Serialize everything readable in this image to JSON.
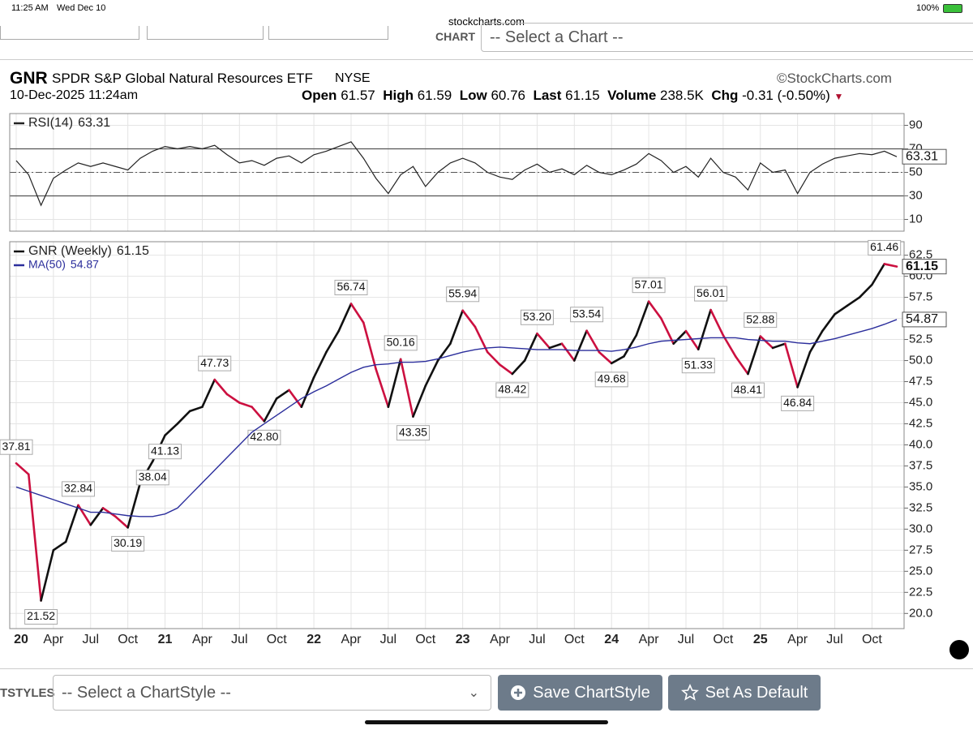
{
  "status_bar": {
    "time": "11:25 AM",
    "date": "Wed Dec 10",
    "url": "stockcharts.com",
    "battery": "100%"
  },
  "toolbar": {
    "chart_label": "CHART",
    "chart_select": "-- Select a Chart --"
  },
  "header": {
    "symbol": "GNR",
    "name": "SPDR S&P Global Natural Resources ETF",
    "exchange": "NYSE",
    "brand": "©StockCharts.com",
    "timestamp": "10-Dec-2025 11:24am",
    "open": {
      "label": "Open",
      "value": 61.57
    },
    "high": {
      "label": "High",
      "value": 61.59
    },
    "low": {
      "label": "Low",
      "value": 60.76
    },
    "last": {
      "label": "Last",
      "value": 61.15
    },
    "volume": {
      "label": "Volume",
      "value": "238.5K"
    },
    "change": {
      "label": "Chg",
      "value": "-0.31 (-0.50%)"
    }
  },
  "chart_data": [
    {
      "type": "line",
      "ylim": [
        0,
        100
      ],
      "yticks": [
        10,
        30,
        50,
        70,
        90
      ],
      "reference_lines": [
        70,
        50,
        30
      ],
      "grid": true,
      "series": [
        {
          "name": "RSI(14)",
          "color": "#222222",
          "last": 63.31,
          "values": [
            60,
            48,
            22,
            45,
            52,
            58,
            55,
            58,
            55,
            52,
            62,
            68,
            72,
            70,
            72,
            70,
            73,
            65,
            58,
            60,
            56,
            62,
            64,
            58,
            65,
            68,
            72,
            76,
            62,
            45,
            32,
            48,
            55,
            38,
            50,
            58,
            62,
            58,
            50,
            46,
            44,
            52,
            57,
            50,
            53,
            48,
            56,
            50,
            48,
            52,
            57,
            66,
            60,
            50,
            55,
            46,
            62,
            50,
            46,
            35,
            58,
            50,
            52,
            32,
            50,
            57,
            62,
            64,
            66,
            65,
            68,
            63.31
          ]
        }
      ]
    },
    {
      "type": "line",
      "grid": true,
      "ylim": [
        18.2,
        64.1
      ],
      "yticks": [
        {
          "value": 20,
          "label": "20.0"
        },
        {
          "value": 22.5,
          "label": "22.5"
        },
        {
          "value": 25,
          "label": "25.0"
        },
        {
          "value": 27.5,
          "label": "27.5"
        },
        {
          "value": 30,
          "label": "30.0"
        },
        {
          "value": 32.5,
          "label": "32.5"
        },
        {
          "value": 35,
          "label": "35.0"
        },
        {
          "value": 37.5,
          "label": "37.5"
        },
        {
          "value": 40,
          "label": "40.0"
        },
        {
          "value": 42.5,
          "label": "42.5"
        },
        {
          "value": 45,
          "label": "45.0"
        },
        {
          "value": 47.5,
          "label": "47.5"
        },
        {
          "value": 50,
          "label": "50.0"
        },
        {
          "value": 52.5,
          "label": "52.5"
        },
        {
          "value": 55,
          "label": "55.0"
        },
        {
          "value": 57.5,
          "label": "57.5"
        },
        {
          "value": 60,
          "label": "60.0"
        },
        {
          "value": 62.5,
          "label": "62.5"
        }
      ],
      "categories": [
        "20",
        null,
        null,
        "Apr",
        null,
        null,
        "Jul",
        null,
        null,
        "Oct",
        null,
        null,
        "21",
        null,
        null,
        "Apr",
        null,
        null,
        "Jul",
        null,
        null,
        "Oct",
        null,
        null,
        "22",
        null,
        null,
        "Apr",
        null,
        null,
        "Jul",
        null,
        null,
        "Oct",
        null,
        null,
        "23",
        null,
        null,
        "Apr",
        null,
        null,
        "Jul",
        null,
        null,
        "Oct",
        null,
        null,
        "24",
        null,
        null,
        "Apr",
        null,
        null,
        "Jul",
        null,
        null,
        "Oct",
        null,
        null,
        "25",
        null,
        null,
        "Apr",
        null,
        null,
        "Jul",
        null,
        null,
        "Oct",
        null,
        null
      ],
      "series": [
        {
          "name": "GNR (Weekly)",
          "color": "#111111",
          "down_color": "#cc1040",
          "last": 61.15,
          "values": [
            37.81,
            36.5,
            21.52,
            27.5,
            28.5,
            32.84,
            30.5,
            32.5,
            31.5,
            30.19,
            35.5,
            38.04,
            41.13,
            42.5,
            44,
            44.5,
            47.73,
            46,
            45,
            44.5,
            42.8,
            45.5,
            46.5,
            44.5,
            48,
            51,
            53.5,
            56.74,
            54.5,
            49,
            44.5,
            50.16,
            43.35,
            47,
            50,
            52,
            55.94,
            54,
            51,
            49.5,
            48.42,
            50,
            53.2,
            51.5,
            52,
            50,
            53.54,
            51,
            49.68,
            50.5,
            53,
            57.01,
            55,
            52,
            53.5,
            51.33,
            56.01,
            53,
            50.5,
            48.41,
            52.88,
            51.5,
            52,
            46.84,
            51,
            53.5,
            55.5,
            56.5,
            57.5,
            59,
            61.46,
            61.15
          ],
          "value_labels": [
            "37.81",
            null,
            "21.52",
            null,
            null,
            "32.84",
            null,
            null,
            null,
            "30.19",
            null,
            "38.04",
            "41.13",
            null,
            null,
            null,
            "47.73",
            null,
            null,
            null,
            "42.80",
            null,
            null,
            null,
            null,
            null,
            null,
            "56.74",
            null,
            null,
            null,
            "50.16",
            "43.35",
            null,
            null,
            null,
            "55.94",
            null,
            null,
            null,
            "48.42",
            null,
            "53.20",
            null,
            null,
            null,
            "53.54",
            null,
            "49.68",
            null,
            null,
            "57.01",
            null,
            null,
            null,
            "51.33",
            "56.01",
            null,
            null,
            "48.41",
            "52.88",
            null,
            null,
            "46.84",
            null,
            null,
            null,
            null,
            null,
            null,
            "61.46",
            null
          ]
        },
        {
          "name": "MA(50)",
          "color": "#2b2e9c",
          "last": 54.87,
          "values": [
            35,
            34.5,
            34,
            33.5,
            33,
            32.5,
            32,
            32,
            31.8,
            31.6,
            31.5,
            31.5,
            31.8,
            32.5,
            34,
            35.5,
            37,
            38.5,
            40,
            41.5,
            42.5,
            43.5,
            44.5,
            45.5,
            46.3,
            47,
            47.8,
            48.6,
            49.2,
            49.5,
            49.6,
            49.8,
            49.8,
            49.9,
            50.2,
            50.6,
            51,
            51.3,
            51.5,
            51.6,
            51.5,
            51.4,
            51.3,
            51.3,
            51.3,
            51.2,
            51.2,
            51.2,
            51.1,
            51.3,
            51.6,
            52,
            52.3,
            52.4,
            52.5,
            52.6,
            52.7,
            52.7,
            52.7,
            52.5,
            52.4,
            52.3,
            52.3,
            52.1,
            52,
            52.3,
            52.6,
            53,
            53.4,
            53.8,
            54.3,
            54.87
          ]
        }
      ]
    }
  ],
  "bottom_bar": {
    "styles_label": "TSTYLES",
    "style_select": "-- Select a ChartStyle --",
    "save_button": "Save ChartStyle",
    "default_button": "Set As Default"
  }
}
